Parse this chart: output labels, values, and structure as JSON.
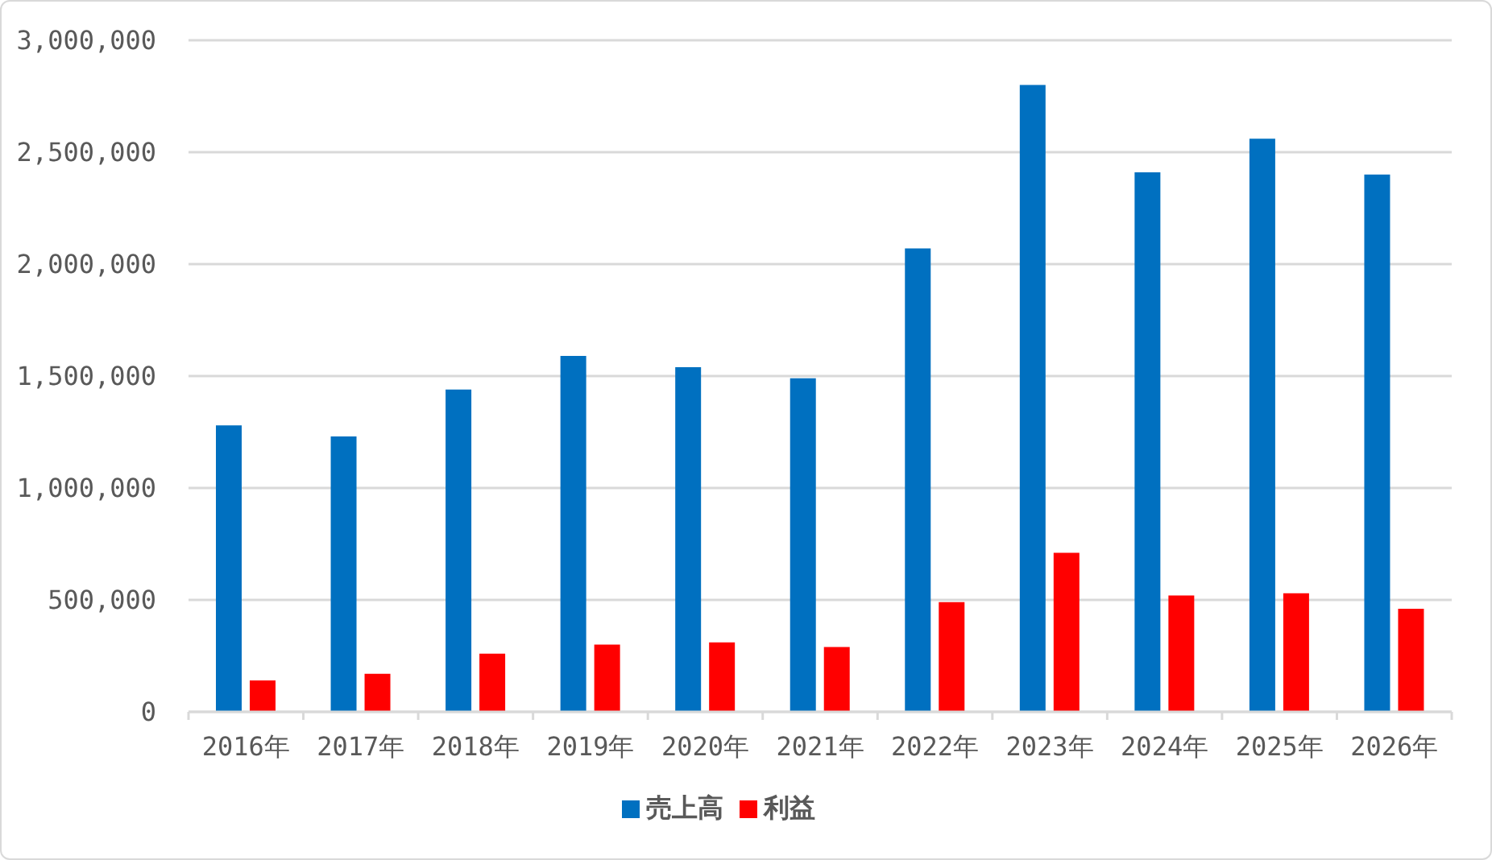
{
  "chart_data": {
    "type": "bar",
    "categories": [
      "2016年",
      "2017年",
      "2018年",
      "2019年",
      "2020年",
      "2021年",
      "2022年",
      "2023年",
      "2024年",
      "2025年",
      "2026年"
    ],
    "series": [
      {
        "name": "売上高",
        "color": "#0070c0",
        "values": [
          1280000,
          1230000,
          1440000,
          1590000,
          1540000,
          1490000,
          2070000,
          2800000,
          2410000,
          2560000,
          2400000
        ]
      },
      {
        "name": "利益",
        "color": "#ff0000",
        "values": [
          140000,
          170000,
          260000,
          300000,
          310000,
          290000,
          490000,
          710000,
          520000,
          530000,
          460000
        ]
      }
    ],
    "ylim": [
      0,
      3000000
    ],
    "yticks": [
      {
        "value": 0,
        "label": "0"
      },
      {
        "value": 500000,
        "label": "500,000"
      },
      {
        "value": 1000000,
        "label": "1,000,000"
      },
      {
        "value": 1500000,
        "label": "1,500,000"
      },
      {
        "value": 2000000,
        "label": "2,000,000"
      },
      {
        "value": 2500000,
        "label": "2,500,000"
      },
      {
        "value": 3000000,
        "label": "3,000,000"
      }
    ],
    "grid": "y",
    "legend": "bottom"
  }
}
